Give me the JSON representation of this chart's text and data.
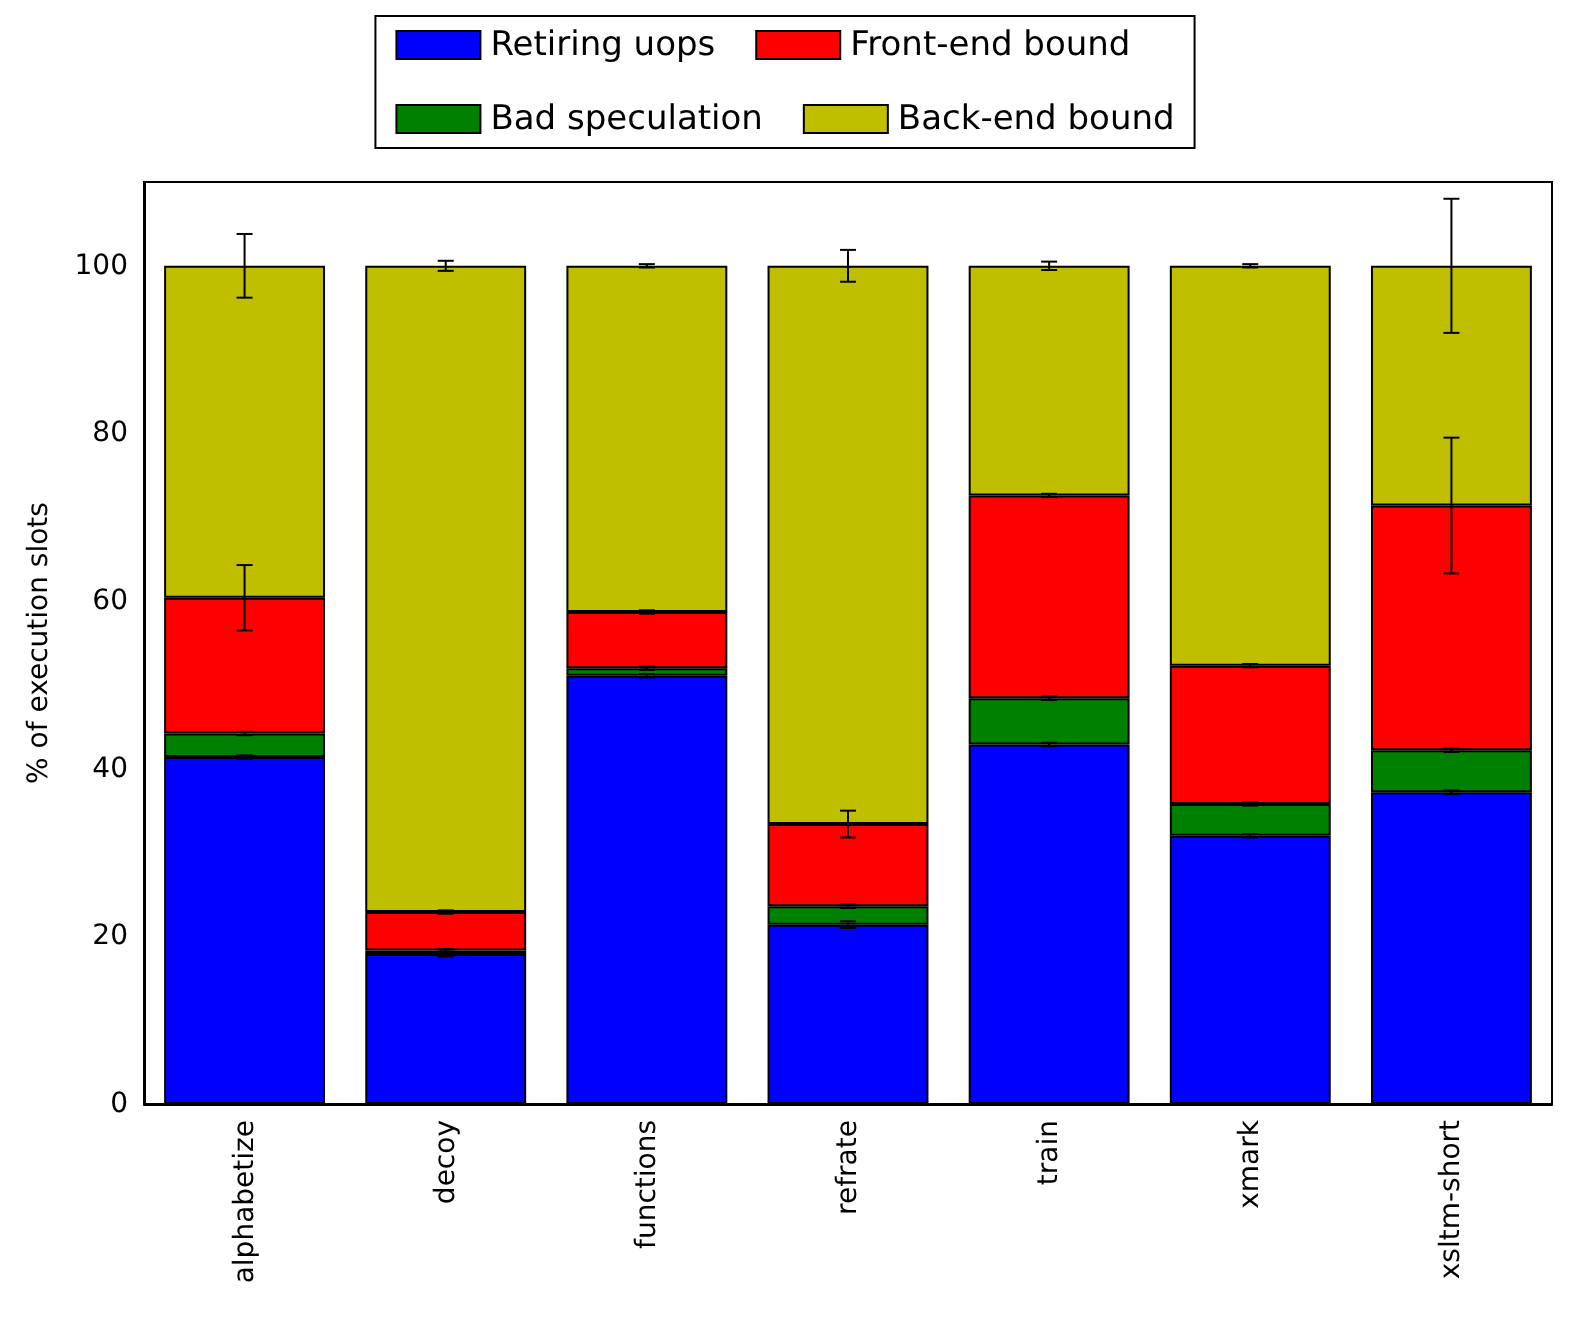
{
  "chart_data": {
    "type": "bar",
    "stacked": true,
    "ylabel": "% of execution slots",
    "categories": [
      "alphabetize",
      "decoy",
      "functions",
      "refrate",
      "train",
      "xmark",
      "xsltm-short"
    ],
    "series": [
      {
        "name": "Retiring uops",
        "color": "#0000ff",
        "values": [
          41.4,
          17.9,
          51.1,
          21.4,
          42.9,
          32.0,
          37.2
        ],
        "errors": [
          0.2,
          0.3,
          0.2,
          0.4,
          0.2,
          0.2,
          0.2
        ]
      },
      {
        "name": "Bad speculation",
        "color": "#008000",
        "values": [
          2.8,
          0.4,
          0.9,
          2.2,
          5.5,
          3.8,
          5.0
        ],
        "errors": [
          0.2,
          0.2,
          0.2,
          0.2,
          0.2,
          0.2,
          0.2
        ]
      },
      {
        "name": "Front-end bound",
        "color": "#ff0000",
        "values": [
          16.2,
          4.6,
          6.7,
          9.8,
          24.2,
          16.5,
          29.2
        ],
        "errors": [
          3.9,
          0.2,
          0.2,
          1.6,
          0.2,
          0.2,
          8.1
        ]
      },
      {
        "name": "Back-end bound",
        "color": "#bfbf00",
        "values": [
          39.6,
          77.1,
          41.3,
          66.6,
          27.4,
          47.7,
          28.6
        ],
        "errors": [
          3.8,
          0.6,
          0.2,
          1.9,
          0.5,
          0.2,
          8.0
        ]
      }
    ],
    "ylim": [
      0,
      110
    ],
    "yticks": [
      0,
      20,
      40,
      60,
      80,
      100
    ],
    "grid": false,
    "legend": "top"
  }
}
